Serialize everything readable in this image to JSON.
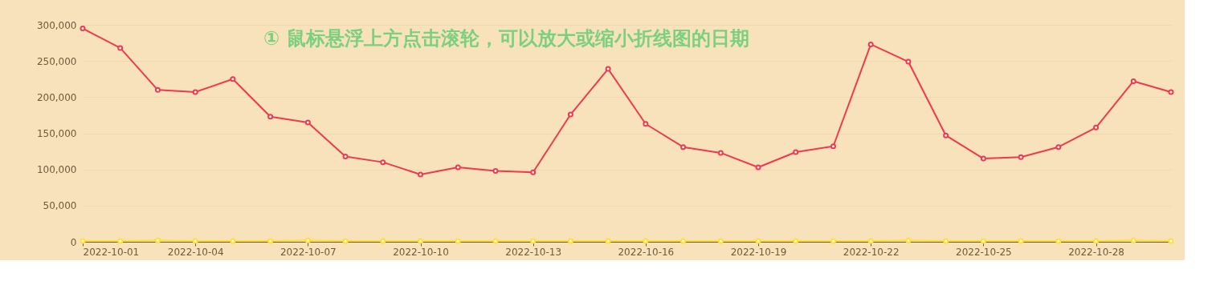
{
  "chart_data": {
    "type": "line",
    "x": [
      "2022-10-01",
      "2022-10-02",
      "2022-10-03",
      "2022-10-04",
      "2022-10-05",
      "2022-10-06",
      "2022-10-07",
      "2022-10-08",
      "2022-10-09",
      "2022-10-10",
      "2022-10-11",
      "2022-10-12",
      "2022-10-13",
      "2022-10-14",
      "2022-10-15",
      "2022-10-16",
      "2022-10-17",
      "2022-10-18",
      "2022-10-19",
      "2022-10-20",
      "2022-10-21",
      "2022-10-22",
      "2022-10-23",
      "2022-10-24",
      "2022-10-25",
      "2022-10-26",
      "2022-10-27",
      "2022-10-28",
      "2022-10-29",
      "2022-10-30"
    ],
    "series": [
      {
        "color": "#f0394f",
        "values": [
          295000,
          268000,
          210000,
          207000,
          225000,
          173000,
          165000,
          118000,
          110000,
          93000,
          103000,
          98000,
          96000,
          176000,
          239000,
          163000,
          131000,
          123000,
          103000,
          124000,
          132000,
          273000,
          249000,
          147000,
          115000,
          117000,
          131000,
          158000,
          222000,
          207000
        ]
      },
      {
        "color": "#ffe033",
        "values": [
          1000,
          1000,
          2000,
          1000,
          1000,
          1000,
          2000,
          1000,
          1000,
          1000,
          1000,
          1000,
          1000,
          1000,
          1000,
          1000,
          1000,
          1000,
          1000,
          1000,
          1000,
          1000,
          2000,
          1000,
          1000,
          1000,
          1000,
          1000,
          2000,
          1000
        ]
      }
    ],
    "xlim": [
      "2022-10-01",
      "2022-10-30"
    ],
    "xticks": [
      "2022-10-01",
      "2022-10-04",
      "2022-10-07",
      "2022-10-10",
      "2022-10-13",
      "2022-10-16",
      "2022-10-19",
      "2022-10-22",
      "2022-10-25",
      "2022-10-28"
    ],
    "ylim": [
      0,
      300000
    ],
    "yticks": [
      0,
      {
        "value": 50000,
        "label": "50,000"
      },
      {
        "value": 100000,
        "label": "100,000"
      },
      {
        "value": 150000,
        "label": "150,000"
      },
      {
        "value": 200000,
        "label": "200,000"
      },
      {
        "value": 250000,
        "label": "250,000"
      },
      {
        "value": 300000,
        "label": "300,000"
      }
    ],
    "grid": "y",
    "marker": "circle",
    "line_style": "solid",
    "annotations": [
      "① 鼠标悬浮上方点击滚轮，可以放大或缩小折线图的日期"
    ]
  }
}
